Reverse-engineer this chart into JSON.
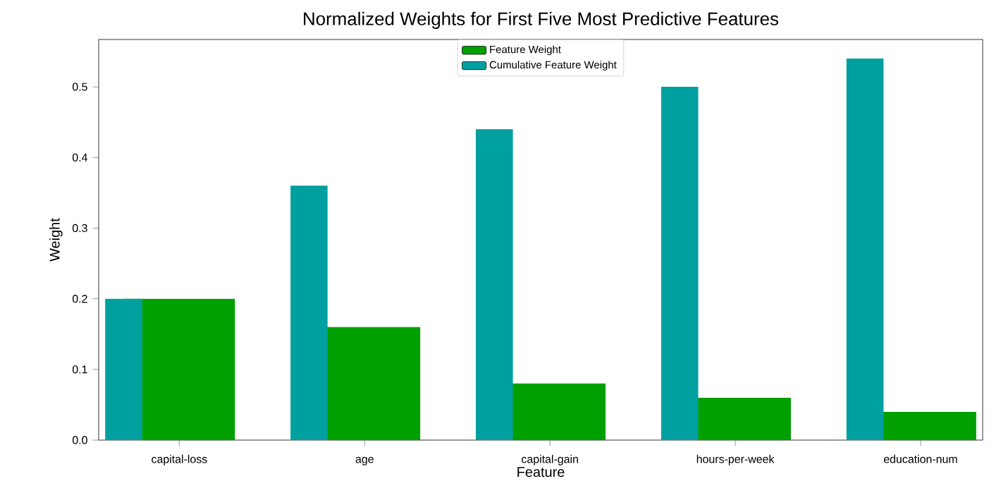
{
  "chart_data": {
    "type": "bar",
    "title": "Normalized Weights for First Five Most Predictive Features",
    "xlabel": "Feature",
    "ylabel": "Weight",
    "categories": [
      "capital-loss",
      "age",
      "capital-gain",
      "hours-per-week",
      "education-num"
    ],
    "series": [
      {
        "name": "Feature Weight",
        "color": "#00a000",
        "values": [
          0.2,
          0.16,
          0.08,
          0.06,
          0.04
        ]
      },
      {
        "name": "Cumulative Feature Weight",
        "color": "#00a0a0",
        "values": [
          0.2,
          0.36,
          0.44,
          0.5,
          0.54
        ]
      }
    ],
    "ylim": [
      0,
      0.567
    ],
    "yticks": [
      {
        "value": 0,
        "label": "0.0"
      },
      0.1,
      0.2,
      0.3,
      0.4,
      0.5
    ],
    "legend": "top",
    "grid": false
  }
}
